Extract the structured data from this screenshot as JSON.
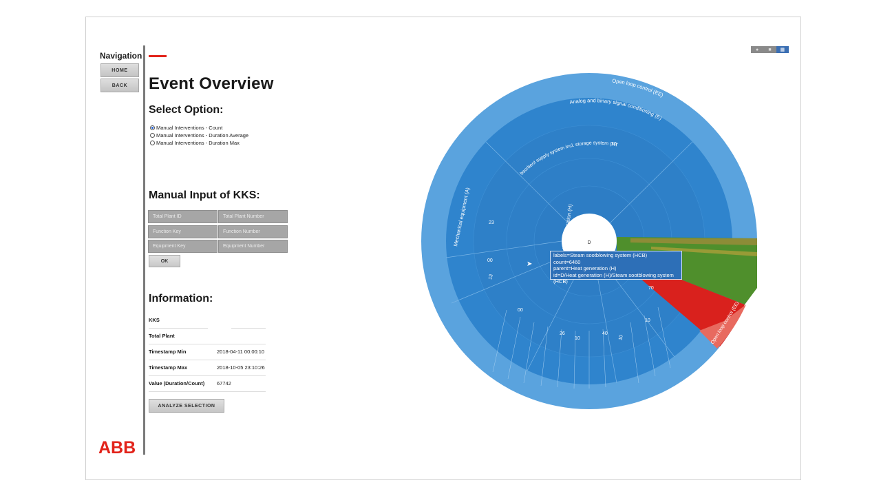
{
  "navigation": {
    "title": "Navigation",
    "home_label": "HOME",
    "back_label": "BACK"
  },
  "page": {
    "title": "Event Overview"
  },
  "options": {
    "title": "Select Option:",
    "items": [
      {
        "label": "Manual Interventions - Count",
        "selected": true
      },
      {
        "label": "Manual Interventions - Duration Average",
        "selected": false
      },
      {
        "label": "Manual Interventions - Duration Max",
        "selected": false
      }
    ]
  },
  "kks": {
    "title": "Manual Input of KKS:",
    "fields": [
      {
        "placeholder": "Total Plant ID"
      },
      {
        "placeholder": "Total Plant Number"
      },
      {
        "placeholder": "Function Key"
      },
      {
        "placeholder": "Function Number"
      },
      {
        "placeholder": "Equipment Key"
      },
      {
        "placeholder": "Equipment Number"
      }
    ],
    "ok_label": "OK"
  },
  "information": {
    "title": "Information:",
    "rows": [
      {
        "label": "KKS",
        "value": ""
      },
      {
        "label": "Total Plant",
        "value": ""
      },
      {
        "label": "Timestamp Min",
        "value": "2018-04-11 00:00:10"
      },
      {
        "label": "Timestamp Max",
        "value": "2018-10-05 23:10:26"
      },
      {
        "label": "Value (Duration/Count)",
        "value": "67742"
      }
    ],
    "analyze_label": "ANALYZE SELECTION"
  },
  "logo_text": "ABB",
  "toolbar": {
    "items": [
      "camera-icon",
      "zoom-icon",
      "chart-icon"
    ]
  },
  "chart_data": {
    "type": "sunburst",
    "center_label": "D",
    "colors": {
      "primary": "#2f84cd",
      "outer": "#5aa3de",
      "red": "#d9211d",
      "green": "#4f8f2c",
      "center": "#ffffff"
    },
    "labels": [
      "Open loop control (EE)",
      "Analog and binary signal conditioning (E)",
      "bsorbent supply system incl. storage system (HT",
      "Heat generation (H)",
      "Mechanical equipment (A)",
      "Open loop control (EE)"
    ],
    "value_labels": [
      "20",
      "23",
      "00",
      "00",
      "26",
      "10",
      "40",
      "10",
      "10",
      "70",
      "13"
    ],
    "tooltip": {
      "lines": [
        "labels=Steam sootblowing system (HCB)",
        "count=6460",
        "parent=Heat generation (H)",
        "id=D/Heat generation (H)/Steam sootblowing system (HCB)"
      ]
    }
  }
}
